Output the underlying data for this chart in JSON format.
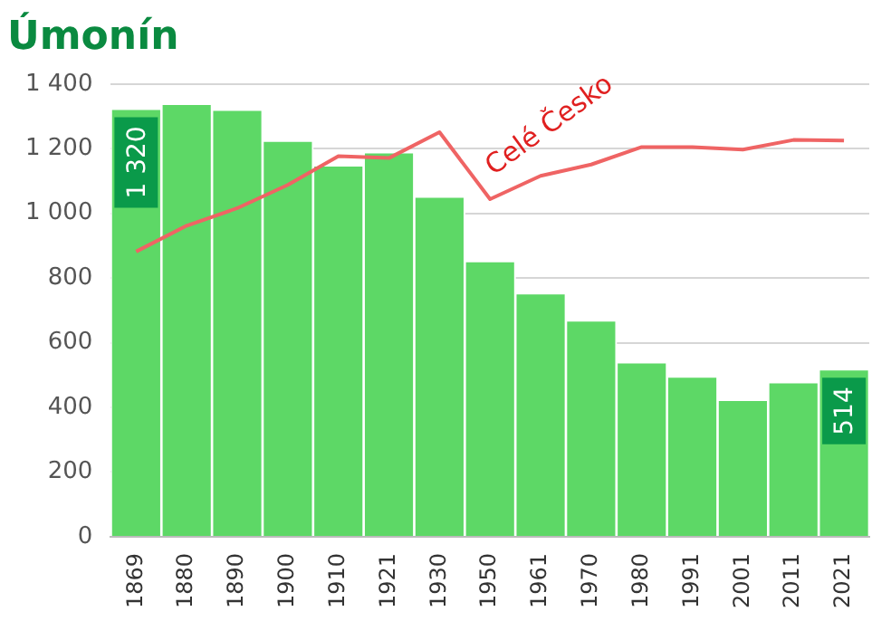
{
  "chart_data": {
    "type": "bar",
    "title": "Úmonín",
    "categories": [
      "1869",
      "1880",
      "1890",
      "1900",
      "1910",
      "1921",
      "1930",
      "1950",
      "1961",
      "1970",
      "1980",
      "1991",
      "2001",
      "2011",
      "2021"
    ],
    "series": [
      {
        "color": "#5dd866",
        "values": [
          1320,
          1335,
          1317,
          1221,
          1145,
          1185,
          1048,
          849,
          749,
          665,
          536,
          492,
          420,
          474,
          514
        ],
        "value_labels": [
          "1 320",
          null,
          null,
          null,
          null,
          null,
          null,
          null,
          null,
          null,
          null,
          null,
          null,
          null,
          "514"
        ]
      },
      {
        "type": "line",
        "name": "Celé Česko",
        "color": "#ef6464",
        "values": [
          882,
          962,
          1016,
          1088,
          1177,
          1171,
          1251,
          1044,
          1116,
          1151,
          1205,
          1205,
          1197,
          1227,
          1225
        ]
      }
    ],
    "ylim": [
      0,
      1400
    ],
    "yticks": [
      0,
      200,
      400,
      600,
      800,
      1000,
      1200,
      1400
    ],
    "grid": "y",
    "legend": false
  }
}
